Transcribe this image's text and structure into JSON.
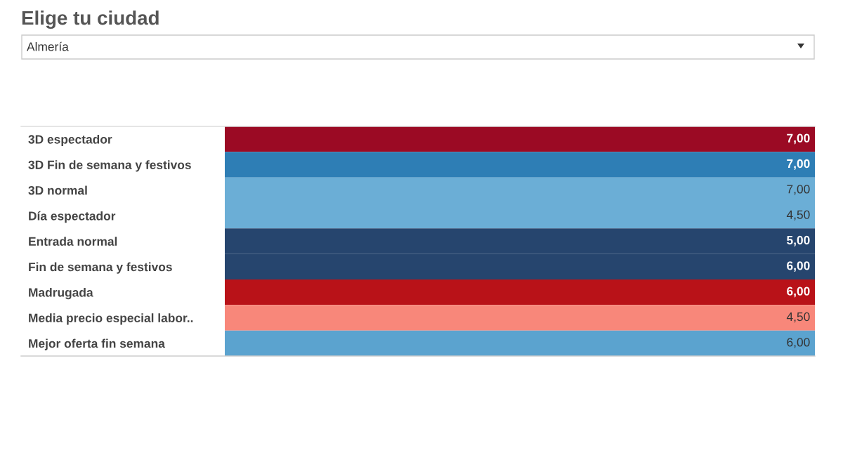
{
  "chart_data": {
    "type": "heatmap",
    "title": "Elige tu ciudad",
    "subtitle": "Almería",
    "categories": [
      null
    ],
    "y_categories": [
      "3D espectador",
      "3D Fin de semana y festivos",
      "3D normal",
      "Día espectador",
      "Entrada normal",
      "Fin de semana y festivos",
      "Madrugada",
      "Media precio especial labor..",
      "Mejor oferta fin semana"
    ],
    "cells": [
      [
        7.0
      ],
      [
        7.0
      ],
      [
        7.0
      ],
      [
        4.5
      ],
      [
        5.0
      ],
      [
        6.0
      ],
      [
        6.0
      ],
      [
        4.5
      ],
      [
        6.0
      ]
    ],
    "cell_labels": [
      [
        "7,00"
      ],
      [
        "7,00"
      ],
      [
        "7,00"
      ],
      [
        "4,50"
      ],
      [
        "5,00"
      ],
      [
        "6,00"
      ],
      [
        "6,00"
      ],
      [
        "4,50"
      ],
      [
        "6,00"
      ]
    ],
    "colors": [
      "#9b0a24",
      "#2e7eb5",
      "#6baed6",
      "#6baed6",
      "#26456e",
      "#26456e",
      "#b91218",
      "#f8877a",
      "#5ba3cf"
    ]
  }
}
